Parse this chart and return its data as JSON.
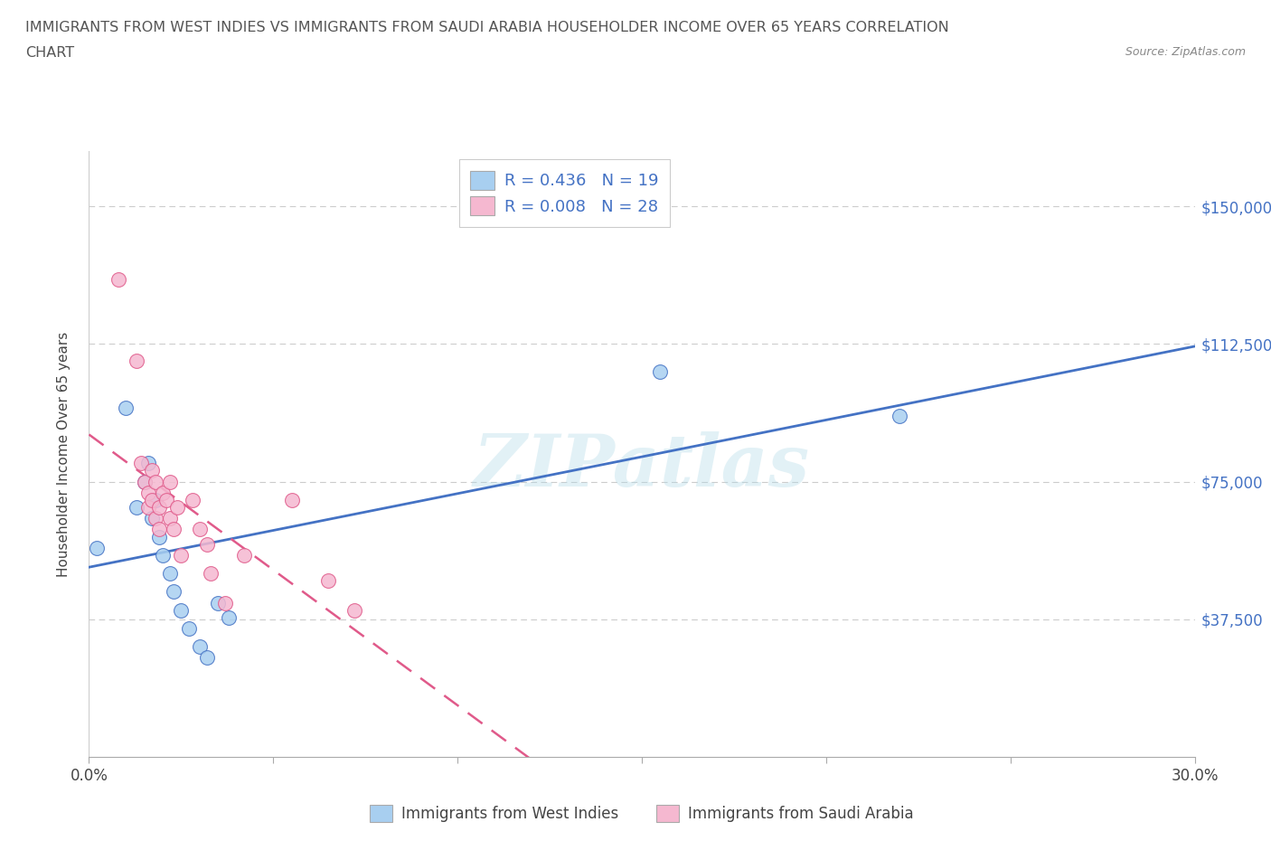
{
  "title_line1": "IMMIGRANTS FROM WEST INDIES VS IMMIGRANTS FROM SAUDI ARABIA HOUSEHOLDER INCOME OVER 65 YEARS CORRELATION",
  "title_line2": "CHART",
  "source_text": "Source: ZipAtlas.com",
  "ylabel": "Householder Income Over 65 years",
  "xlim": [
    0.0,
    0.3
  ],
  "ylim": [
    0,
    165000
  ],
  "yticks": [
    0,
    37500,
    75000,
    112500,
    150000
  ],
  "ytick_labels": [
    "",
    "$37,500",
    "$75,000",
    "$112,500",
    "$150,000"
  ],
  "xticks": [
    0.0,
    0.05,
    0.1,
    0.15,
    0.2,
    0.25,
    0.3
  ],
  "xtick_labels": [
    "0.0%",
    "",
    "",
    "",
    "",
    "",
    "30.0%"
  ],
  "legend_label1": "Immigrants from West Indies",
  "legend_label2": "Immigrants from Saudi Arabia",
  "R1": "0.436",
  "N1": "19",
  "R2": "0.008",
  "N2": "28",
  "color1": "#a8cff0",
  "color2": "#f5b8d0",
  "line_color1": "#4472c4",
  "line_color2": "#e05a8a",
  "watermark": "ZIPatlas",
  "west_indies_x": [
    0.002,
    0.01,
    0.013,
    0.015,
    0.016,
    0.017,
    0.018,
    0.019,
    0.02,
    0.022,
    0.023,
    0.025,
    0.027,
    0.03,
    0.032,
    0.035,
    0.038,
    0.155,
    0.22
  ],
  "west_indies_y": [
    57000,
    95000,
    68000,
    75000,
    80000,
    65000,
    70000,
    60000,
    55000,
    50000,
    45000,
    40000,
    35000,
    30000,
    27000,
    42000,
    38000,
    105000,
    93000
  ],
  "saudi_arabia_x": [
    0.008,
    0.013,
    0.014,
    0.015,
    0.016,
    0.016,
    0.017,
    0.017,
    0.018,
    0.018,
    0.019,
    0.019,
    0.02,
    0.021,
    0.022,
    0.022,
    0.023,
    0.024,
    0.025,
    0.028,
    0.03,
    0.032,
    0.033,
    0.037,
    0.042,
    0.055,
    0.065,
    0.072
  ],
  "saudi_arabia_y": [
    130000,
    108000,
    80000,
    75000,
    72000,
    68000,
    78000,
    70000,
    75000,
    65000,
    68000,
    62000,
    72000,
    70000,
    75000,
    65000,
    62000,
    68000,
    55000,
    70000,
    62000,
    58000,
    50000,
    42000,
    55000,
    70000,
    48000,
    40000
  ],
  "background_color": "#ffffff",
  "grid_color": "#cccccc",
  "hline_y": [
    37500,
    75000,
    112500,
    150000
  ]
}
